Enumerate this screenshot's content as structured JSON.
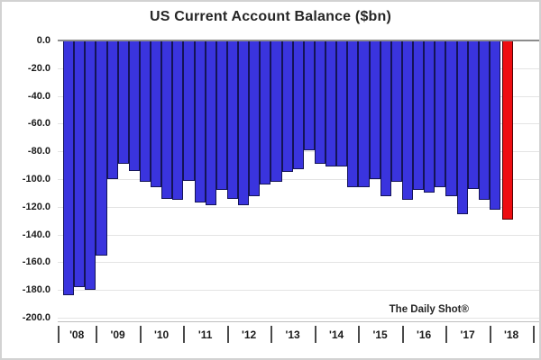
{
  "chart": {
    "watermark": "The Daily Shot®"
  },
  "chart_data": {
    "type": "bar",
    "title": "US Current Account Balance ($bn)",
    "xlabel": "",
    "ylabel": "",
    "ylim": [
      -200,
      0
    ],
    "grid": true,
    "legend": false,
    "y_tick_labels": [
      "0.0",
      "-20.0",
      "-40.0",
      "-60.0",
      "-80.0",
      "-100.0",
      "-120.0",
      "-140.0",
      "-160.0",
      "-180.0",
      "-200.0"
    ],
    "categories": [
      "'08",
      "'09",
      "'10",
      "'11",
      "'12",
      "'13",
      "'14",
      "'15",
      "'16",
      "'17",
      "'18"
    ],
    "unit": "$bn",
    "frequency": "quarterly",
    "groups": [
      {
        "label": "'08",
        "values": [
          -184,
          -178,
          -180
        ]
      },
      {
        "label": "'09",
        "values": [
          -155,
          -100,
          -89,
          -94
        ]
      },
      {
        "label": "'10",
        "values": [
          -102,
          -106,
          -114,
          -115
        ]
      },
      {
        "label": "'11",
        "values": [
          -101,
          -117,
          -119,
          -108
        ]
      },
      {
        "label": "'12",
        "values": [
          -114,
          -119,
          -112,
          -104
        ]
      },
      {
        "label": "'13",
        "values": [
          -102,
          -95,
          -93,
          -79
        ]
      },
      {
        "label": "'14",
        "values": [
          -89,
          -91,
          -91,
          -106
        ]
      },
      {
        "label": "'15",
        "values": [
          -106,
          -100,
          -112,
          -102
        ]
      },
      {
        "label": "'16",
        "values": [
          -115,
          -108,
          -110,
          -106
        ]
      },
      {
        "label": "'17",
        "values": [
          -112,
          -125,
          -107,
          -115
        ]
      },
      {
        "label": "'18",
        "values": [
          -122,
          -129
        ]
      }
    ],
    "highlight": {
      "group": "'18",
      "index_in_group": 1,
      "note": "latest quarter shown in red"
    },
    "colors": {
      "bar_fill": "#3a34de",
      "bar_border": "#141457",
      "highlight_fill": "#ee0d11",
      "highlight_border": "#4d0305",
      "zero_line": "#8c8c8c",
      "gridline": "#e4e4e4",
      "text": "#1a1a1a"
    }
  }
}
